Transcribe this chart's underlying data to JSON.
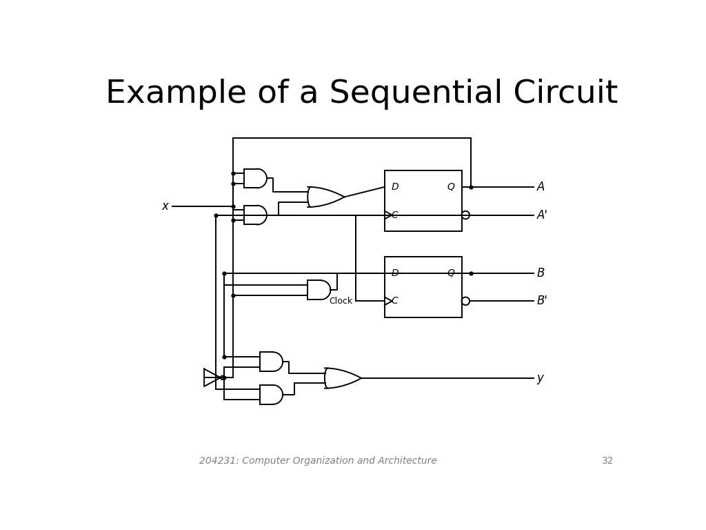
{
  "title": "Example of a Sequential Circuit",
  "subtitle": "204231: Computer Organization and Architecture",
  "page_num": "32",
  "title_fontsize": 34,
  "subtitle_fontsize": 10,
  "lw": 1.4,
  "dot_size": 4.5,
  "gate_lw": 1.4
}
